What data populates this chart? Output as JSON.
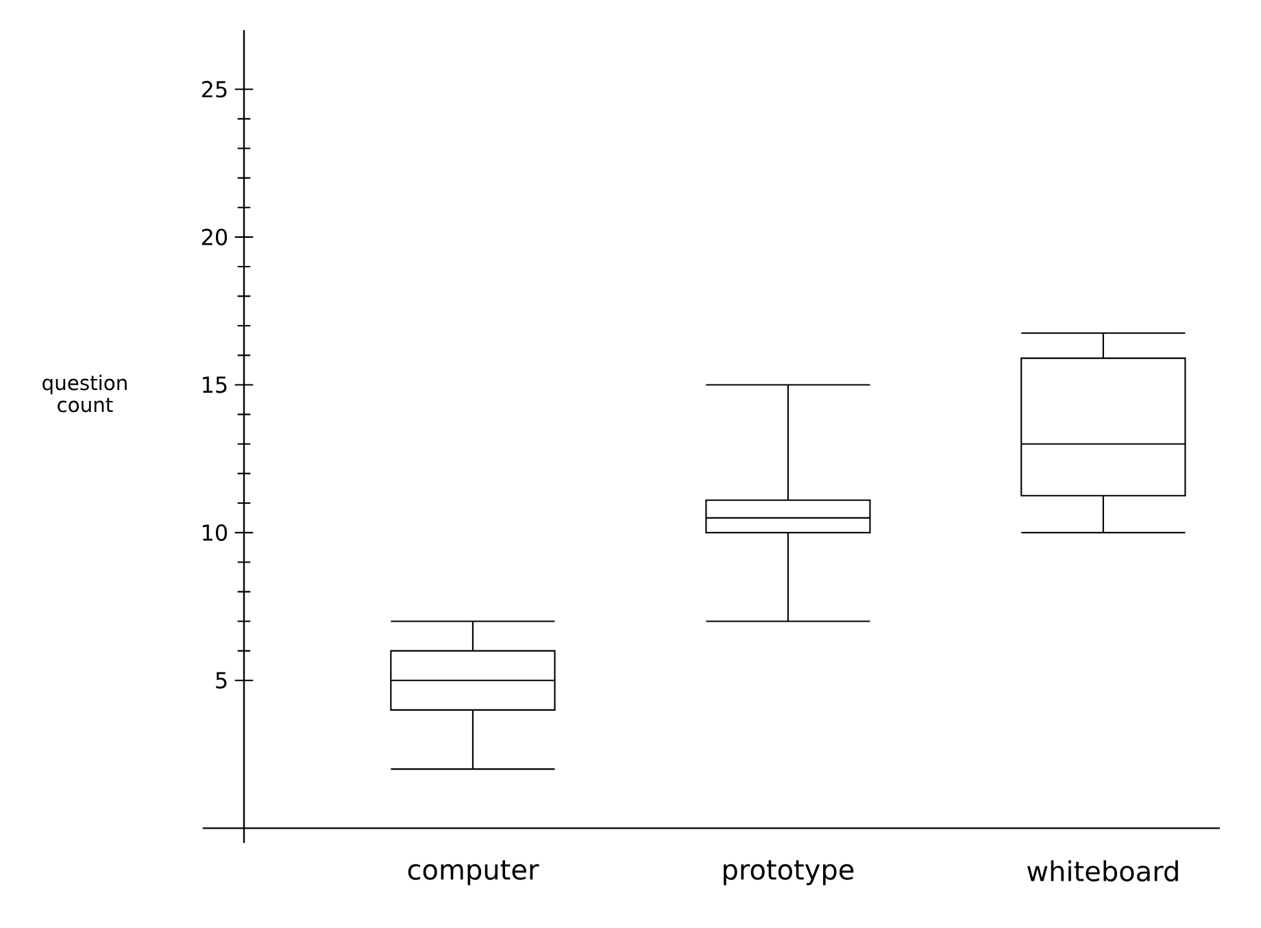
{
  "chart_data": {
    "type": "box",
    "ylabel": "question count",
    "categories": [
      "computer",
      "prototype",
      "whiteboard"
    ],
    "boxes": [
      {
        "low": 2,
        "q1": 4,
        "median": 5,
        "q3": 6,
        "high": 7
      },
      {
        "low": 7,
        "q1": 10,
        "median": 10.5,
        "q3": 11.1,
        "high": 15
      },
      {
        "low": 10,
        "q1": 11.25,
        "median": 13,
        "q3": 15.9,
        "high": 16.75
      }
    ],
    "ylim": [
      -0.5,
      27
    ],
    "yticks": [
      5,
      10,
      15,
      20,
      25
    ]
  }
}
